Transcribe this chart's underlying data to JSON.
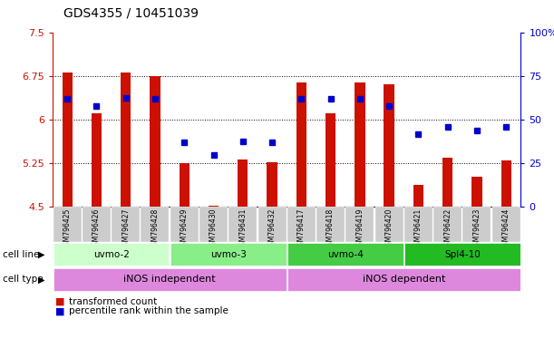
{
  "title": "GDS4355 / 10451039",
  "samples": [
    "GSM796425",
    "GSM796426",
    "GSM796427",
    "GSM796428",
    "GSM796429",
    "GSM796430",
    "GSM796431",
    "GSM796432",
    "GSM796417",
    "GSM796418",
    "GSM796419",
    "GSM796420",
    "GSM796421",
    "GSM796422",
    "GSM796423",
    "GSM796424"
  ],
  "transformed_count": [
    6.82,
    6.12,
    6.82,
    6.76,
    5.26,
    4.52,
    5.32,
    5.28,
    6.65,
    6.12,
    6.65,
    6.62,
    4.88,
    5.35,
    5.02,
    5.3
  ],
  "percentile_rank": [
    62,
    58,
    63,
    62,
    37,
    30,
    38,
    37,
    62,
    62,
    62,
    58,
    42,
    46,
    44,
    46
  ],
  "bar_bottom": 4.5,
  "ylim_left": [
    4.5,
    7.5
  ],
  "ylim_right": [
    0,
    100
  ],
  "yticks_left": [
    4.5,
    5.25,
    6.0,
    6.75,
    7.5
  ],
  "yticks_right": [
    0,
    25,
    50,
    75,
    100
  ],
  "ytick_labels_left": [
    "4.5",
    "5.25",
    "6",
    "6.75",
    "7.5"
  ],
  "ytick_labels_right": [
    "0",
    "25",
    "50",
    "75",
    "100%"
  ],
  "bar_color": "#CC1100",
  "dot_color": "#0000CC",
  "cell_line_groups": [
    {
      "label": "uvmo-2",
      "start": 0,
      "end": 3,
      "color": "#ccffcc"
    },
    {
      "label": "uvmo-3",
      "start": 4,
      "end": 7,
      "color": "#88ee88"
    },
    {
      "label": "uvmo-4",
      "start": 8,
      "end": 11,
      "color": "#44cc44"
    },
    {
      "label": "Spl4-10",
      "start": 12,
      "end": 15,
      "color": "#22bb22"
    }
  ],
  "cell_type_independent": {
    "label": "iNOS independent",
    "start": 0,
    "end": 7,
    "color": "#dd88dd"
  },
  "cell_type_dependent": {
    "label": "iNOS dependent",
    "start": 8,
    "end": 15,
    "color": "#dd88dd"
  },
  "legend_bar_label": "transformed count",
  "legend_dot_label": "percentile rank within the sample",
  "axis_bg_color": "#ffffff",
  "title_fontsize": 10,
  "tick_fontsize": 8,
  "label_fontsize": 8
}
